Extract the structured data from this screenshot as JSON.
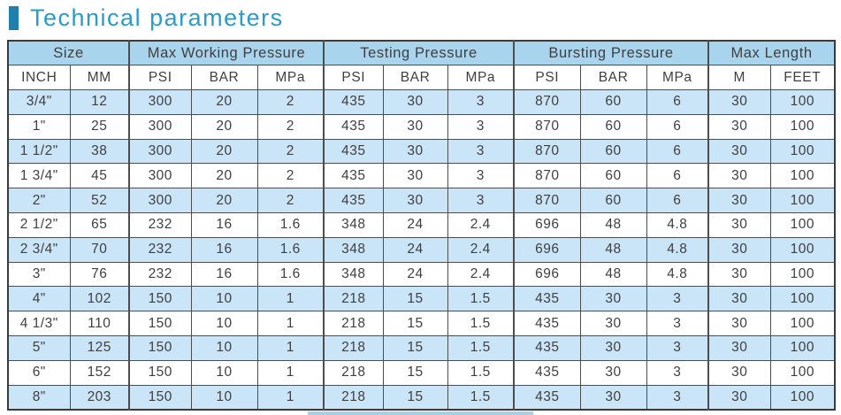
{
  "title": "Technical parameters",
  "colors": {
    "title_text": "#2a9cc7",
    "title_bar": "#1f7fad",
    "header_bg": "#a9d4ee",
    "row_alt_bg": "#cbe5f8",
    "row_bg": "#ffffff",
    "border": "#4d4d4d",
    "outer_border": "#3a3a3a",
    "text": "#3f3f3f",
    "bottom_bar": "#a9cfe6"
  },
  "table": {
    "groups": [
      {
        "label": "Size",
        "span": 2
      },
      {
        "label": "Max Working Pressure",
        "span": 3
      },
      {
        "label": "Testing Pressure",
        "span": 3
      },
      {
        "label": "Bursting Pressure",
        "span": 3
      },
      {
        "label": "Max Length",
        "span": 2
      }
    ],
    "columns": [
      "INCH",
      "MM",
      "PSI",
      "BAR",
      "MPa",
      "PSI",
      "BAR",
      "MPa",
      "PSI",
      "BAR",
      "MPa",
      "M",
      "FEET"
    ],
    "rows": [
      [
        "3/4\"",
        "12",
        "300",
        "20",
        "2",
        "435",
        "30",
        "3",
        "870",
        "60",
        "6",
        "30",
        "100"
      ],
      [
        "1\"",
        "25",
        "300",
        "20",
        "2",
        "435",
        "30",
        "3",
        "870",
        "60",
        "6",
        "30",
        "100"
      ],
      [
        "1 1/2\"",
        "38",
        "300",
        "20",
        "2",
        "435",
        "30",
        "3",
        "870",
        "60",
        "6",
        "30",
        "100"
      ],
      [
        "1 3/4\"",
        "45",
        "300",
        "20",
        "2",
        "435",
        "30",
        "3",
        "870",
        "60",
        "6",
        "30",
        "100"
      ],
      [
        "2\"",
        "52",
        "300",
        "20",
        "2",
        "435",
        "30",
        "3",
        "870",
        "60",
        "6",
        "30",
        "100"
      ],
      [
        "2 1/2\"",
        "65",
        "232",
        "16",
        "1.6",
        "348",
        "24",
        "2.4",
        "696",
        "48",
        "4.8",
        "30",
        "100"
      ],
      [
        "2 3/4\"",
        "70",
        "232",
        "16",
        "1.6",
        "348",
        "24",
        "2.4",
        "696",
        "48",
        "4.8",
        "30",
        "100"
      ],
      [
        "3\"",
        "76",
        "232",
        "16",
        "1.6",
        "348",
        "24",
        "2.4",
        "696",
        "48",
        "4.8",
        "30",
        "100"
      ],
      [
        "4\"",
        "102",
        "150",
        "10",
        "1",
        "218",
        "15",
        "1.5",
        "435",
        "30",
        "3",
        "30",
        "100"
      ],
      [
        "4 1/3\"",
        "110",
        "150",
        "10",
        "1",
        "218",
        "15",
        "1.5",
        "435",
        "30",
        "3",
        "30",
        "100"
      ],
      [
        "5\"",
        "125",
        "150",
        "10",
        "1",
        "218",
        "15",
        "1.5",
        "435",
        "30",
        "3",
        "30",
        "100"
      ],
      [
        "6\"",
        "152",
        "150",
        "10",
        "1",
        "218",
        "15",
        "1.5",
        "435",
        "30",
        "3",
        "30",
        "100"
      ],
      [
        "8\"",
        "203",
        "150",
        "10",
        "1",
        "218",
        "15",
        "1.5",
        "435",
        "30",
        "3",
        "30",
        "100"
      ]
    ]
  }
}
